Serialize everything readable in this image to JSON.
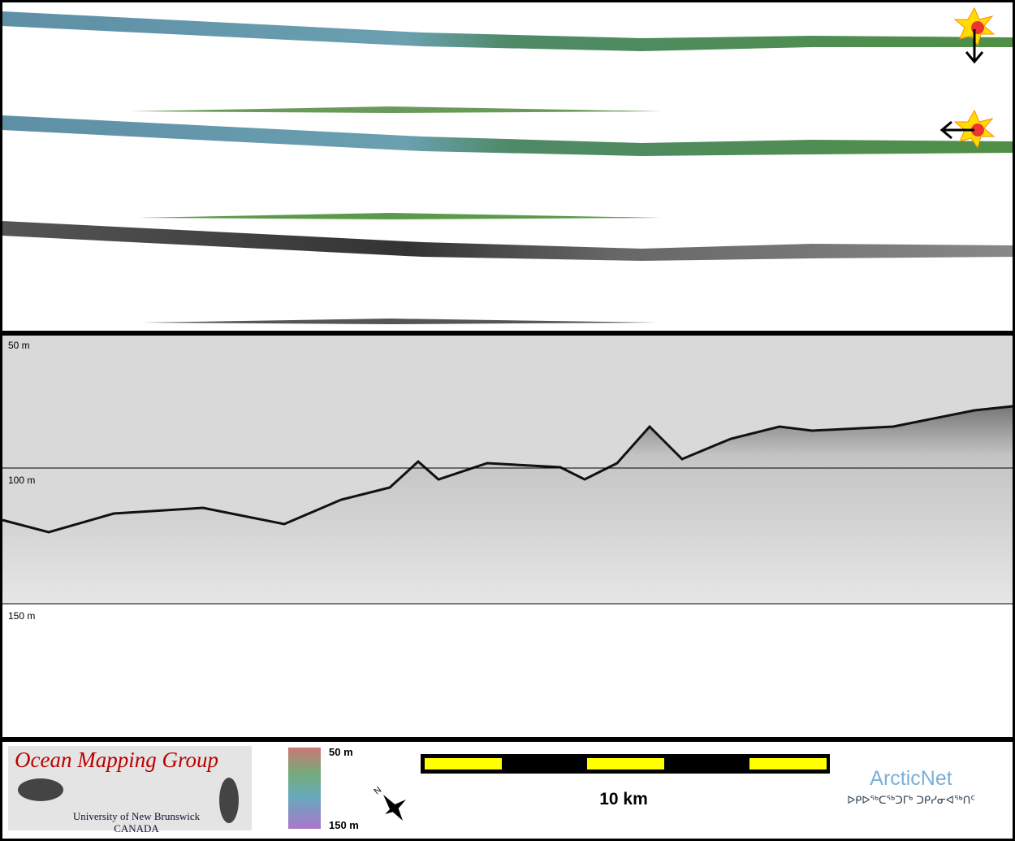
{
  "profile": {
    "depth_labels": [
      "50 m",
      "100 m",
      "150 m"
    ]
  },
  "legend": {
    "logo_title": "Ocean Mapping Group",
    "logo_line1": "University of New Brunswick",
    "logo_line2": "CANADA",
    "colorbar_top": "50 m",
    "colorbar_bottom": "150 m",
    "scale": "10 km",
    "partner": "ArcticNet",
    "partner_syllabics": "ᐅᑭᐅᖅᑕᖅᑐᒥᒃ ᑐᑭᓯᓂᐊᖅᑎᑦ"
  }
}
